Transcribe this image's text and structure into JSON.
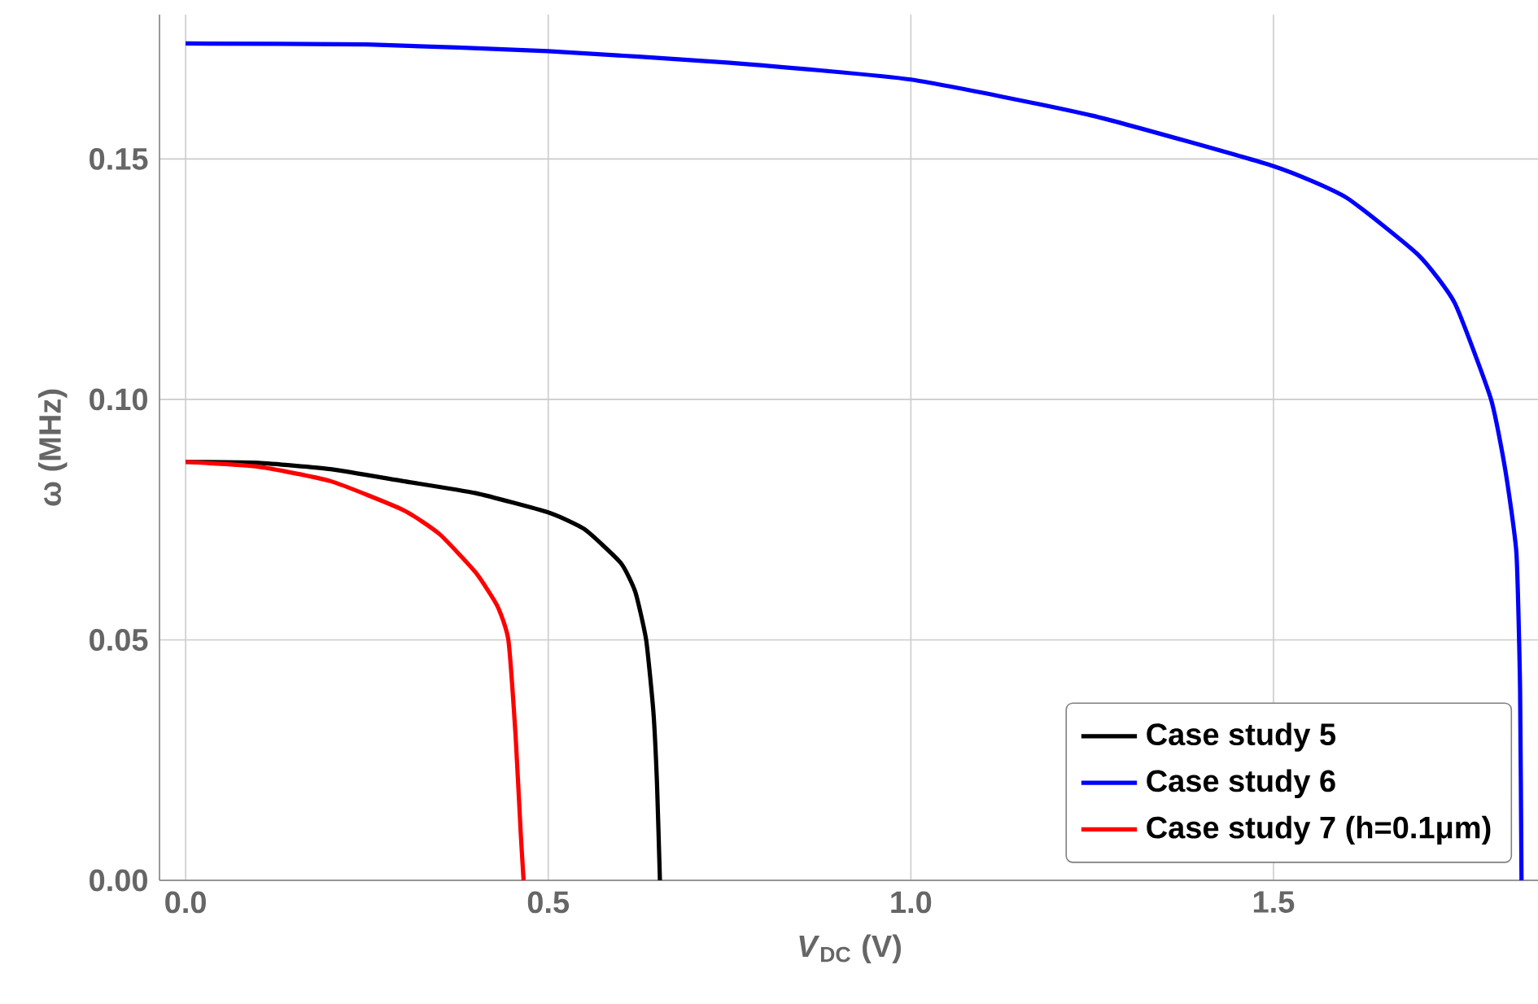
{
  "chart_data": {
    "type": "line",
    "xlabel": "*V*$_{DC}$ (V)",
    "ylabel": "ω (MHz)",
    "xlim": [
      -0.036,
      1.867
    ],
    "ylim": [
      0,
      0.18
    ],
    "xticks": [
      {
        "value": 0,
        "label": "0.0"
      },
      {
        "value": 0.5,
        "label": "0.5"
      },
      {
        "value": 1,
        "label": "1.0"
      },
      {
        "value": 1.5,
        "label": "1.5"
      }
    ],
    "yticks": [
      {
        "value": 0,
        "label": "0.00"
      },
      {
        "value": 0.05,
        "label": "0.05"
      },
      {
        "value": 0.1,
        "label": "0.10"
      },
      {
        "value": 0.15,
        "label": "0.15"
      }
    ],
    "grid": true,
    "legend": "bottom right",
    "marker": "none",
    "line_style": "solid",
    "series": [
      {
        "name": "Case study 5",
        "color": "#000000",
        "x": [
          0,
          0.1,
          0.2,
          0.3,
          0.4,
          0.5,
          0.55,
          0.6,
          0.62,
          0.635,
          0.645,
          0.65,
          0.654
        ],
        "values": [
          0.087,
          0.0868,
          0.0855,
          0.083,
          0.0805,
          0.0765,
          0.073,
          0.066,
          0.06,
          0.05,
          0.035,
          0.02,
          0
        ]
      },
      {
        "name": "Case study 6",
        "color": "#0000ff",
        "x": [
          0,
          0.25,
          0.5,
          0.75,
          1.0,
          1.25,
          1.5,
          1.6,
          1.7,
          1.75,
          1.8,
          1.82,
          1.835,
          1.84,
          1.842
        ],
        "values": [
          0.174,
          0.1738,
          0.1724,
          0.17,
          0.1665,
          0.159,
          0.1485,
          0.142,
          0.13,
          0.12,
          0.1,
          0.085,
          0.068,
          0.04,
          0
        ]
      },
      {
        "name": "Case study 7 (h=0.1μm)",
        "color": "#ff0000",
        "x": [
          0,
          0.1,
          0.2,
          0.3,
          0.35,
          0.4,
          0.43,
          0.445,
          0.455,
          0.462,
          0.466
        ],
        "values": [
          0.087,
          0.086,
          0.083,
          0.077,
          0.072,
          0.064,
          0.057,
          0.05,
          0.03,
          0.01,
          0
        ]
      }
    ]
  }
}
